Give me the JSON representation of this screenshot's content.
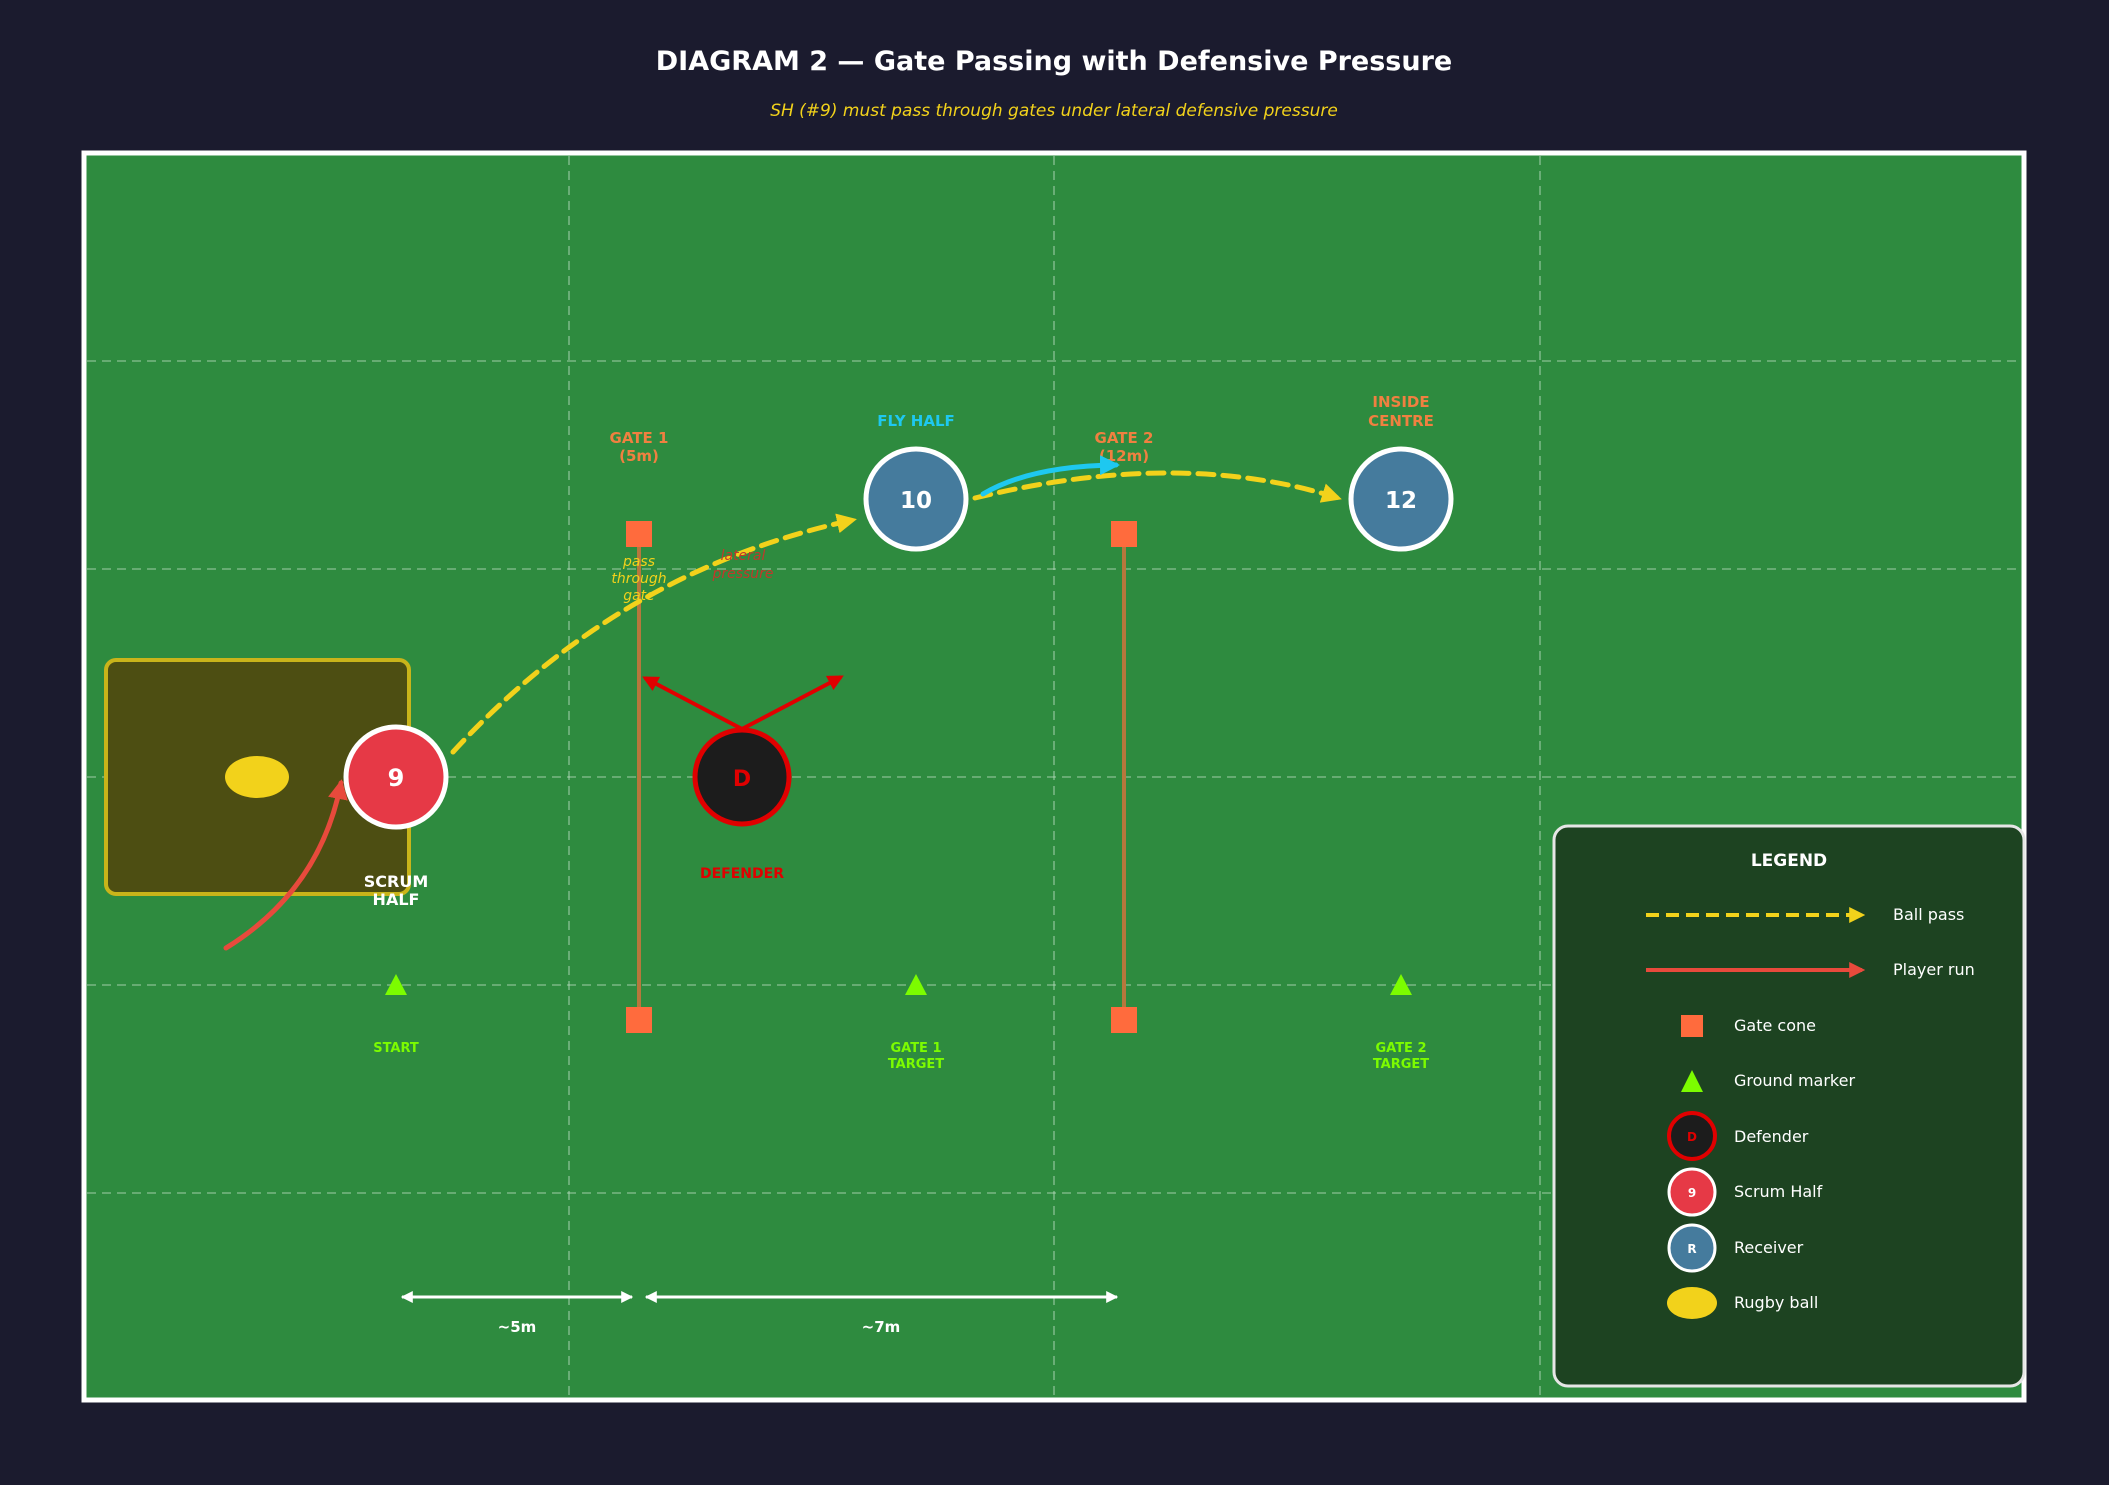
{
  "title": "DIAGRAM 2 — Gate Passing with Defensive Pressure",
  "subtitle": "SH (#9) must pass through gates under lateral defensive pressure",
  "players": {
    "scrum_half": {
      "number": "9",
      "label_line1": "SCRUM",
      "label_line2": "HALF"
    },
    "fly_half": {
      "number": "10",
      "label": "FLY HALF"
    },
    "inside_centre": {
      "number": "12",
      "label_line1": "INSIDE",
      "label_line2": "CENTRE"
    },
    "defender": {
      "letter": "D",
      "label": "DEFENDER"
    }
  },
  "gates": {
    "gate1": {
      "line1": "GATE 1",
      "line2": "(5m)"
    },
    "gate2": {
      "line1": "GATE 2",
      "line2": "(12m)"
    }
  },
  "annotations": {
    "pass_through_gate_1": "pass",
    "pass_through_gate_2": "through",
    "pass_through_gate_3": "gate",
    "pressure_1": "lateral",
    "pressure_2": "pressure"
  },
  "markers": {
    "start": "START",
    "gate1_target_1": "GATE 1",
    "gate1_target_2": "TARGET",
    "gate2_target_1": "GATE 2",
    "gate2_target_2": "TARGET"
  },
  "distances": {
    "d1": "~5m",
    "d2": "~7m"
  },
  "legend": {
    "title": "LEGEND",
    "ball_pass": "Ball pass",
    "player_run": "Player run",
    "gate_cone": "Gate cone",
    "ground_marker": "Ground marker",
    "defender": "Defender",
    "defender_icon": "D",
    "scrum_half": "Scrum Half",
    "scrum_half_icon": "9",
    "receiver": "Receiver",
    "receiver_icon": "R",
    "rugby_ball": "Rugby ball"
  },
  "colors": {
    "background": "#1b1b2e",
    "pitch": "#2e8b3f",
    "pass": "#f2d21b",
    "run": "#e84a3c",
    "cone": "#ff6b3d",
    "marker": "#7cfc00",
    "defender_border": "#e00000",
    "scrum_half_fill": "#e63946",
    "receiver_fill": "#457b9d",
    "fly_half_label": "#1ec8f0",
    "gate_label": "#f08040"
  }
}
